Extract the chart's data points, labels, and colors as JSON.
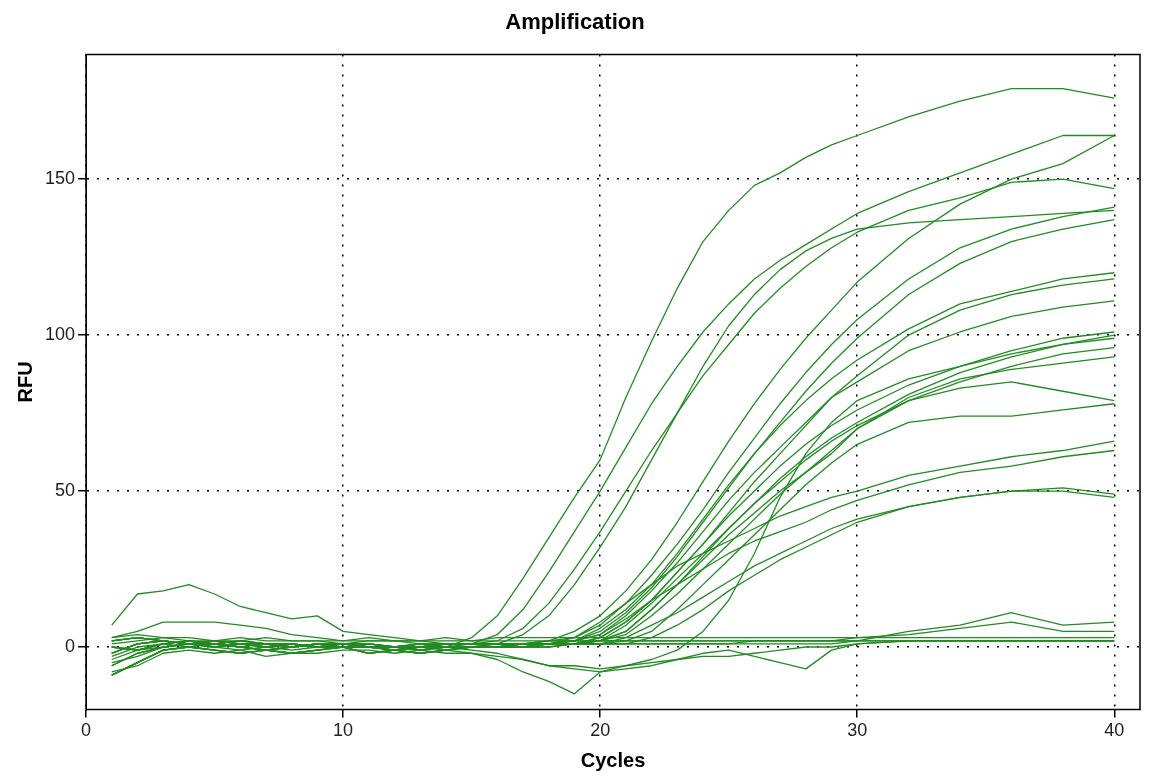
{
  "chart_data": {
    "type": "line",
    "title": "Amplification",
    "xlabel": "Cycles",
    "ylabel": "RFU",
    "x": [
      1,
      2,
      3,
      4,
      5,
      6,
      7,
      8,
      9,
      10,
      11,
      12,
      13,
      14,
      15,
      16,
      17,
      18,
      19,
      20,
      21,
      22,
      23,
      24,
      25,
      26,
      27,
      28,
      29,
      30,
      32,
      34,
      36,
      38,
      40
    ],
    "xlim": [
      0,
      41
    ],
    "ylim": [
      -20,
      190
    ],
    "xticks": [
      0,
      10,
      20,
      30,
      40
    ],
    "yticks": [
      0,
      50,
      100,
      150
    ],
    "grid": true,
    "legend": false,
    "marker": "none",
    "line_style": "solid",
    "series": [
      {
        "color": "#228b22",
        "values": [
          -2,
          1,
          2,
          1,
          0,
          1,
          0,
          1,
          0,
          0,
          0,
          -1,
          0,
          0,
          3,
          10,
          22,
          35,
          48,
          60,
          80,
          98,
          115,
          130,
          140,
          148,
          152,
          157,
          161,
          164,
          170,
          175,
          179,
          179,
          176
        ]
      },
      {
        "color": "#228b22",
        "values": [
          -6,
          -2,
          0,
          1,
          1,
          0,
          -1,
          0,
          1,
          1,
          0,
          0,
          -1,
          0,
          1,
          4,
          12,
          24,
          37,
          50,
          64,
          78,
          90,
          101,
          110,
          118,
          124,
          129,
          134,
          139,
          146,
          152,
          158,
          164,
          164
        ]
      },
      {
        "color": "#228b22",
        "values": [
          2,
          3,
          2,
          1,
          2,
          1,
          1,
          1,
          0,
          1,
          0,
          0,
          0,
          1,
          1,
          2,
          6,
          14,
          25,
          37,
          50,
          63,
          75,
          87,
          97,
          107,
          115,
          122,
          128,
          133,
          140,
          144,
          149,
          150,
          147
        ]
      },
      {
        "color": "#228b22",
        "values": [
          -9,
          -5,
          -1,
          0,
          -1,
          -2,
          -1,
          -2,
          -1,
          0,
          -2,
          -1,
          -2,
          -1,
          0,
          1,
          4,
          10,
          20,
          32,
          45,
          60,
          75,
          90,
          103,
          113,
          121,
          127,
          131,
          134,
          136,
          137,
          138,
          139,
          140
        ]
      },
      {
        "color": "#228b22",
        "values": [
          0,
          -1,
          1,
          2,
          1,
          2,
          1,
          0,
          1,
          1,
          1,
          0,
          1,
          0,
          0,
          1,
          1,
          2,
          5,
          10,
          18,
          28,
          40,
          53,
          66,
          78,
          89,
          99,
          108,
          117,
          131,
          142,
          150,
          155,
          164
        ]
      },
      {
        "color": "#228b22",
        "values": [
          -2,
          1,
          2,
          1,
          0,
          1,
          0,
          1,
          0,
          0,
          0,
          -1,
          0,
          0,
          0,
          0,
          1,
          1,
          3,
          7,
          14,
          23,
          33,
          44,
          56,
          67,
          78,
          88,
          97,
          105,
          118,
          128,
          134,
          138,
          141
        ]
      },
      {
        "color": "#228b22",
        "values": [
          -6,
          -2,
          0,
          1,
          1,
          0,
          -1,
          0,
          1,
          1,
          0,
          0,
          -1,
          0,
          0,
          0,
          1,
          1,
          2,
          5,
          11,
          19,
          29,
          40,
          51,
          62,
          72,
          82,
          91,
          99,
          113,
          123,
          130,
          134,
          137
        ]
      },
      {
        "color": "#228b22",
        "values": [
          2,
          3,
          2,
          1,
          2,
          1,
          1,
          1,
          0,
          1,
          0,
          0,
          0,
          1,
          1,
          1,
          1,
          1,
          2,
          6,
          12,
          20,
          30,
          41,
          52,
          62,
          71,
          79,
          86,
          92,
          102,
          110,
          114,
          118,
          120
        ]
      },
      {
        "color": "#228b22",
        "values": [
          -9,
          -5,
          -1,
          0,
          -1,
          -2,
          -1,
          -2,
          -1,
          0,
          -2,
          -1,
          -2,
          -1,
          0,
          0,
          0,
          1,
          1,
          3,
          8,
          15,
          24,
          33,
          43,
          53,
          62,
          71,
          80,
          87,
          100,
          108,
          113,
          116,
          118
        ]
      },
      {
        "color": "#228b22",
        "values": [
          0,
          -1,
          1,
          2,
          1,
          2,
          1,
          0,
          1,
          1,
          1,
          0,
          1,
          0,
          0,
          0,
          1,
          1,
          2,
          4,
          10,
          18,
          27,
          37,
          47,
          56,
          64,
          72,
          80,
          85,
          95,
          101,
          106,
          109,
          111
        ]
      },
      {
        "color": "#228b22",
        "values": [
          -2,
          1,
          2,
          1,
          0,
          1,
          0,
          1,
          0,
          0,
          0,
          -1,
          0,
          0,
          0,
          0,
          1,
          1,
          1,
          3,
          8,
          15,
          24,
          33,
          42,
          50,
          58,
          65,
          71,
          76,
          84,
          90,
          95,
          99,
          101
        ]
      },
      {
        "color": "#228b22",
        "values": [
          -6,
          -2,
          0,
          1,
          1,
          0,
          -1,
          0,
          1,
          1,
          0,
          0,
          -1,
          0,
          0,
          0,
          0,
          1,
          1,
          2,
          5,
          12,
          20,
          29,
          38,
          46,
          54,
          61,
          67,
          72,
          81,
          88,
          93,
          97,
          100
        ]
      },
      {
        "color": "#228b22",
        "values": [
          2,
          3,
          2,
          1,
          2,
          1,
          1,
          1,
          0,
          1,
          0,
          0,
          0,
          1,
          1,
          1,
          1,
          1,
          1,
          2,
          7,
          14,
          22,
          30,
          38,
          46,
          53,
          60,
          66,
          71,
          79,
          85,
          90,
          94,
          96
        ]
      },
      {
        "color": "#228b22",
        "values": [
          -9,
          -5,
          -1,
          0,
          -1,
          -2,
          -1,
          -2,
          -1,
          0,
          -2,
          -1,
          -2,
          -1,
          0,
          0,
          0,
          0,
          1,
          2,
          4,
          10,
          17,
          25,
          33,
          41,
          49,
          56,
          63,
          70,
          80,
          86,
          89,
          91,
          93
        ]
      },
      {
        "color": "#228b22",
        "values": [
          0,
          -1,
          1,
          2,
          1,
          2,
          1,
          0,
          1,
          1,
          1,
          0,
          1,
          0,
          0,
          0,
          1,
          1,
          1,
          2,
          5,
          12,
          20,
          28,
          36,
          43,
          50,
          56,
          62,
          70,
          79,
          83,
          85,
          82,
          79
        ]
      },
      {
        "color": "#228b22",
        "values": [
          -2,
          1,
          2,
          1,
          0,
          1,
          0,
          1,
          0,
          0,
          0,
          -1,
          0,
          0,
          0,
          0,
          0,
          1,
          1,
          1,
          2,
          5,
          12,
          20,
          28,
          36,
          44,
          52,
          59,
          65,
          72,
          74,
          74,
          76,
          78
        ]
      },
      {
        "color": "#228b22",
        "values": [
          -5,
          -3,
          0,
          1,
          1,
          0,
          -1,
          0,
          1,
          1,
          0,
          0,
          -1,
          0,
          -1,
          -2,
          -4,
          -6,
          -7,
          -8,
          -6,
          -4,
          -1,
          5,
          15,
          30,
          48,
          62,
          72,
          79,
          86,
          90,
          94,
          97,
          99
        ]
      },
      {
        "color": "#228b22",
        "values": [
          2,
          3,
          2,
          1,
          2,
          1,
          1,
          1,
          0,
          1,
          0,
          0,
          0,
          1,
          1,
          1,
          1,
          2,
          3,
          8,
          14,
          20,
          26,
          30,
          34,
          38,
          42,
          45,
          48,
          50,
          55,
          58,
          61,
          63,
          66
        ]
      },
      {
        "color": "#228b22",
        "values": [
          -9,
          -5,
          -1,
          0,
          -1,
          -2,
          -1,
          -2,
          -1,
          0,
          -2,
          -1,
          -2,
          -1,
          0,
          0,
          0,
          1,
          2,
          4,
          9,
          15,
          20,
          25,
          30,
          34,
          37,
          40,
          44,
          47,
          52,
          56,
          58,
          61,
          63
        ]
      },
      {
        "color": "#228b22",
        "values": [
          0,
          -1,
          1,
          2,
          1,
          2,
          1,
          0,
          1,
          1,
          1,
          0,
          1,
          0,
          0,
          0,
          0,
          1,
          1,
          1,
          3,
          7,
          11,
          16,
          21,
          26,
          30,
          34,
          38,
          41,
          45,
          48,
          50,
          51,
          49
        ]
      },
      {
        "color": "#228b22",
        "values": [
          -2,
          1,
          2,
          1,
          0,
          1,
          0,
          1,
          0,
          0,
          0,
          -1,
          0,
          0,
          0,
          0,
          0,
          0,
          1,
          1,
          1,
          3,
          7,
          12,
          18,
          23,
          28,
          32,
          36,
          40,
          45,
          48,
          50,
          50,
          48
        ]
      },
      {
        "color": "#228b22",
        "values": [
          7,
          17,
          18,
          20,
          17,
          13,
          11,
          9,
          10,
          5,
          4,
          3,
          2,
          1,
          1,
          1,
          1,
          1,
          1,
          1,
          1,
          1,
          1,
          1,
          1,
          1,
          1,
          1,
          1,
          2,
          5,
          7,
          11,
          7,
          8
        ]
      },
      {
        "color": "#228b22",
        "values": [
          3,
          5,
          8,
          8,
          8,
          7,
          6,
          4,
          3,
          2,
          2,
          2,
          1,
          1,
          1,
          1,
          1,
          1,
          1,
          1,
          1,
          1,
          1,
          1,
          1,
          2,
          2,
          2,
          2,
          3,
          4,
          6,
          8,
          5,
          5
        ]
      },
      {
        "color": "#228b22",
        "values": [
          -4,
          -1,
          0,
          1,
          0,
          -1,
          0,
          -1,
          0,
          1,
          0,
          -1,
          0,
          -1,
          -2,
          -4,
          -8,
          -11,
          -15,
          -8,
          -7,
          -6,
          -4,
          -2,
          -1,
          -3,
          -5,
          -7,
          -1,
          1,
          2,
          2,
          2,
          2,
          2
        ]
      },
      {
        "color": "#228b22",
        "values": [
          -8,
          -6,
          -2,
          -1,
          -2,
          -1,
          -3,
          -2,
          -2,
          -1,
          -1,
          -2,
          -1,
          -2,
          -2,
          -3,
          -4,
          -6,
          -6,
          -7,
          -6,
          -5,
          -4,
          -3,
          -3,
          -2,
          -1,
          0,
          0,
          1,
          2,
          2,
          2,
          2,
          2
        ]
      },
      {
        "color": "#228b22",
        "values": [
          1,
          2,
          3,
          2,
          2,
          3,
          2,
          2,
          2,
          1,
          2,
          2,
          2,
          2,
          2,
          2,
          2,
          2,
          2,
          2,
          2,
          2,
          2,
          2,
          2,
          2,
          2,
          2,
          2,
          2,
          2,
          2,
          2,
          2,
          2
        ]
      },
      {
        "color": "#228b22",
        "values": [
          -3,
          0,
          1,
          0,
          1,
          0,
          1,
          0,
          1,
          0,
          1,
          0,
          1,
          1,
          1,
          1,
          1,
          2,
          2,
          2,
          2,
          2,
          2,
          2,
          2,
          2,
          2,
          2,
          2,
          2,
          2,
          2,
          2,
          2,
          2
        ]
      },
      {
        "color": "#228b22",
        "values": [
          3,
          4,
          3,
          3,
          2,
          2,
          3,
          2,
          2,
          2,
          3,
          2,
          2,
          3,
          2,
          3,
          3,
          3,
          3,
          3,
          3,
          3,
          3,
          3,
          3,
          3,
          3,
          3,
          3,
          3,
          3,
          3,
          3,
          3,
          3
        ]
      }
    ]
  }
}
